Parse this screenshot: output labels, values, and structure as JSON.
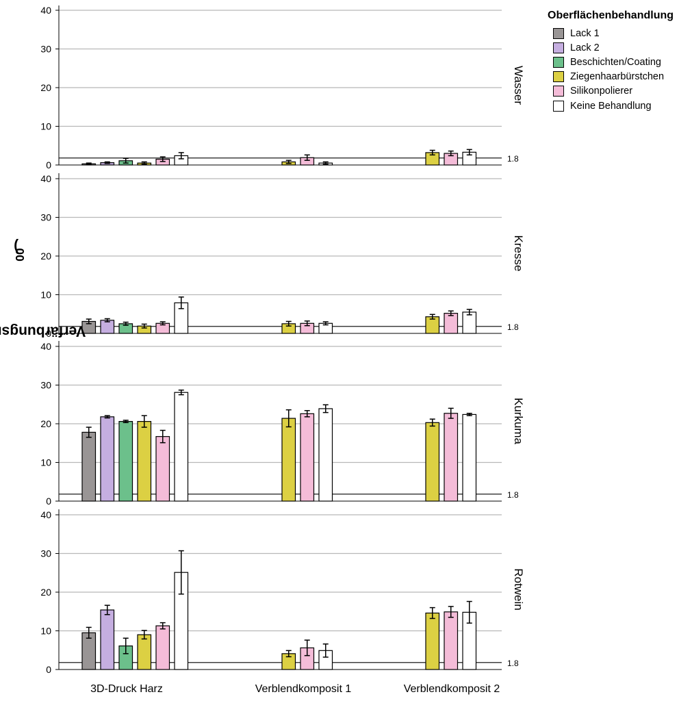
{
  "chart_data": {
    "type": "bar",
    "ylabel_main": "Verfärbungsrate (ΔE",
    "ylabel_sub": "00",
    "ylabel_close": ")",
    "legend_title": "Oberflächenbehandlung",
    "legend_placement": "top-right",
    "categories": [
      "3D-Druck Harz",
      "Verblendkomposit 1",
      "Verblendkomposit 2"
    ],
    "ylim": [
      0,
      42
    ],
    "yticks": [
      0,
      10,
      20,
      30,
      40
    ],
    "reference_line": {
      "value": 1.8,
      "label": "1.8"
    },
    "series": [
      {
        "name": "Lack 1",
        "color": "#999595"
      },
      {
        "name": "Lack 2",
        "color": "#c5aee0"
      },
      {
        "name": "Beschichten/Coating",
        "color": "#6cc08b"
      },
      {
        "name": "Ziegenhaarbürstchen",
        "color": "#dcd043"
      },
      {
        "name": "Silikonpolierer",
        "color": "#f4bcd8"
      },
      {
        "name": "Keine Behandlung",
        "color": "#ffffff"
      }
    ],
    "panels": [
      {
        "label": "Wasser",
        "groups": [
          [
            {
              "s": 0,
              "v": 0.3,
              "e": 0.2
            },
            {
              "s": 1,
              "v": 0.6,
              "e": 0.2
            },
            {
              "s": 2,
              "v": 1.1,
              "e": 0.6
            },
            {
              "s": 3,
              "v": 0.5,
              "e": 0.3
            },
            {
              "s": 4,
              "v": 1.5,
              "e": 0.6
            },
            {
              "s": 5,
              "v": 2.4,
              "e": 0.8
            }
          ],
          [
            {
              "s": 3,
              "v": 0.8,
              "e": 0.4
            },
            {
              "s": 4,
              "v": 1.9,
              "e": 0.7
            },
            {
              "s": 5,
              "v": 0.5,
              "e": 0.3
            }
          ],
          [
            {
              "s": 3,
              "v": 3.2,
              "e": 0.6
            },
            {
              "s": 4,
              "v": 3.0,
              "e": 0.6
            },
            {
              "s": 5,
              "v": 3.3,
              "e": 0.7
            }
          ]
        ]
      },
      {
        "label": "Kresse",
        "groups": [
          [
            {
              "s": 0,
              "v": 3.1,
              "e": 0.6
            },
            {
              "s": 1,
              "v": 3.4,
              "e": 0.4
            },
            {
              "s": 2,
              "v": 2.5,
              "e": 0.4
            },
            {
              "s": 3,
              "v": 1.9,
              "e": 0.5
            },
            {
              "s": 4,
              "v": 2.6,
              "e": 0.4
            },
            {
              "s": 5,
              "v": 7.9,
              "e": 1.5
            }
          ],
          [
            {
              "s": 3,
              "v": 2.5,
              "e": 0.6
            },
            {
              "s": 4,
              "v": 2.6,
              "e": 0.6
            },
            {
              "s": 5,
              "v": 2.6,
              "e": 0.4
            }
          ],
          [
            {
              "s": 3,
              "v": 4.3,
              "e": 0.6
            },
            {
              "s": 4,
              "v": 5.2,
              "e": 0.6
            },
            {
              "s": 5,
              "v": 5.5,
              "e": 0.7
            }
          ]
        ]
      },
      {
        "label": "Kurkuma",
        "groups": [
          [
            {
              "s": 0,
              "v": 17.8,
              "e": 1.3
            },
            {
              "s": 1,
              "v": 21.8,
              "e": 0.3
            },
            {
              "s": 2,
              "v": 20.6,
              "e": 0.3
            },
            {
              "s": 3,
              "v": 20.6,
              "e": 1.5
            },
            {
              "s": 4,
              "v": 16.7,
              "e": 1.6
            },
            {
              "s": 5,
              "v": 28.1,
              "e": 0.6
            }
          ],
          [
            {
              "s": 3,
              "v": 21.4,
              "e": 2.2
            },
            {
              "s": 4,
              "v": 22.6,
              "e": 0.8
            },
            {
              "s": 5,
              "v": 23.9,
              "e": 1.0
            }
          ],
          [
            {
              "s": 3,
              "v": 20.3,
              "e": 0.9
            },
            {
              "s": 4,
              "v": 22.7,
              "e": 1.3
            },
            {
              "s": 5,
              "v": 22.4,
              "e": 0.3
            }
          ]
        ]
      },
      {
        "label": "Rotwein",
        "groups": [
          [
            {
              "s": 0,
              "v": 9.5,
              "e": 1.4
            },
            {
              "s": 1,
              "v": 15.4,
              "e": 1.2
            },
            {
              "s": 2,
              "v": 6.1,
              "e": 2.0
            },
            {
              "s": 3,
              "v": 9.0,
              "e": 1.1
            },
            {
              "s": 4,
              "v": 11.3,
              "e": 0.8
            },
            {
              "s": 5,
              "v": 25.1,
              "e": 5.6
            }
          ],
          [
            {
              "s": 3,
              "v": 4.1,
              "e": 0.8
            },
            {
              "s": 4,
              "v": 5.6,
              "e": 2.0
            },
            {
              "s": 5,
              "v": 4.9,
              "e": 1.7
            }
          ],
          [
            {
              "s": 3,
              "v": 14.6,
              "e": 1.4
            },
            {
              "s": 4,
              "v": 14.9,
              "e": 1.4
            },
            {
              "s": 5,
              "v": 14.8,
              "e": 2.8
            }
          ]
        ]
      }
    ]
  }
}
